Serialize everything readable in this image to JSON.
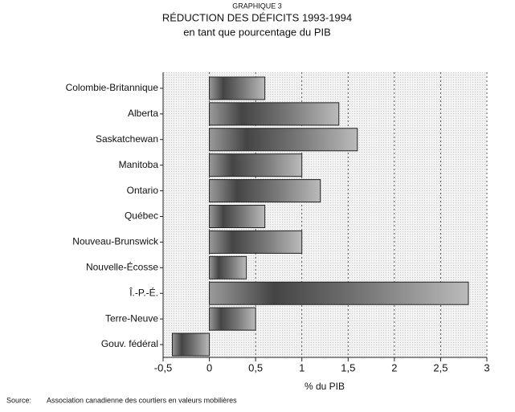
{
  "chart_data": {
    "type": "hbar",
    "supertitle": "GRAPHIQUE 3",
    "title": "RÉDUCTION DES DÉFICITS 1993-1994",
    "subtitle": "en tant que pourcentage du PIB",
    "x_label": "% du PIB",
    "source_label": "Source:",
    "source": "Association canadienne des courtiers en valeurs mobilières",
    "categories": [
      "Colombie-Britannique",
      "Alberta",
      "Saskatchewan",
      "Manitoba",
      "Ontario",
      "Québec",
      "Nouveau-Brunswick",
      "Nouvelle-Écosse",
      "Î.-P.-É.",
      "Terre-Neuve",
      "Gouv. fédéral"
    ],
    "values": [
      0.6,
      1.4,
      1.6,
      1.0,
      1.2,
      0.6,
      1.0,
      0.4,
      2.8,
      0.5,
      -0.4
    ],
    "color": "#555555",
    "xlim": [
      -0.5,
      3
    ],
    "xticks": [
      {
        "value": -0.5,
        "label": "-0,5"
      },
      0,
      {
        "value": 0.5,
        "label": "0,5"
      },
      1,
      {
        "value": 1.5,
        "label": "1,5"
      },
      2,
      {
        "value": 2.5,
        "label": "2,5"
      },
      3
    ],
    "grid": true
  }
}
